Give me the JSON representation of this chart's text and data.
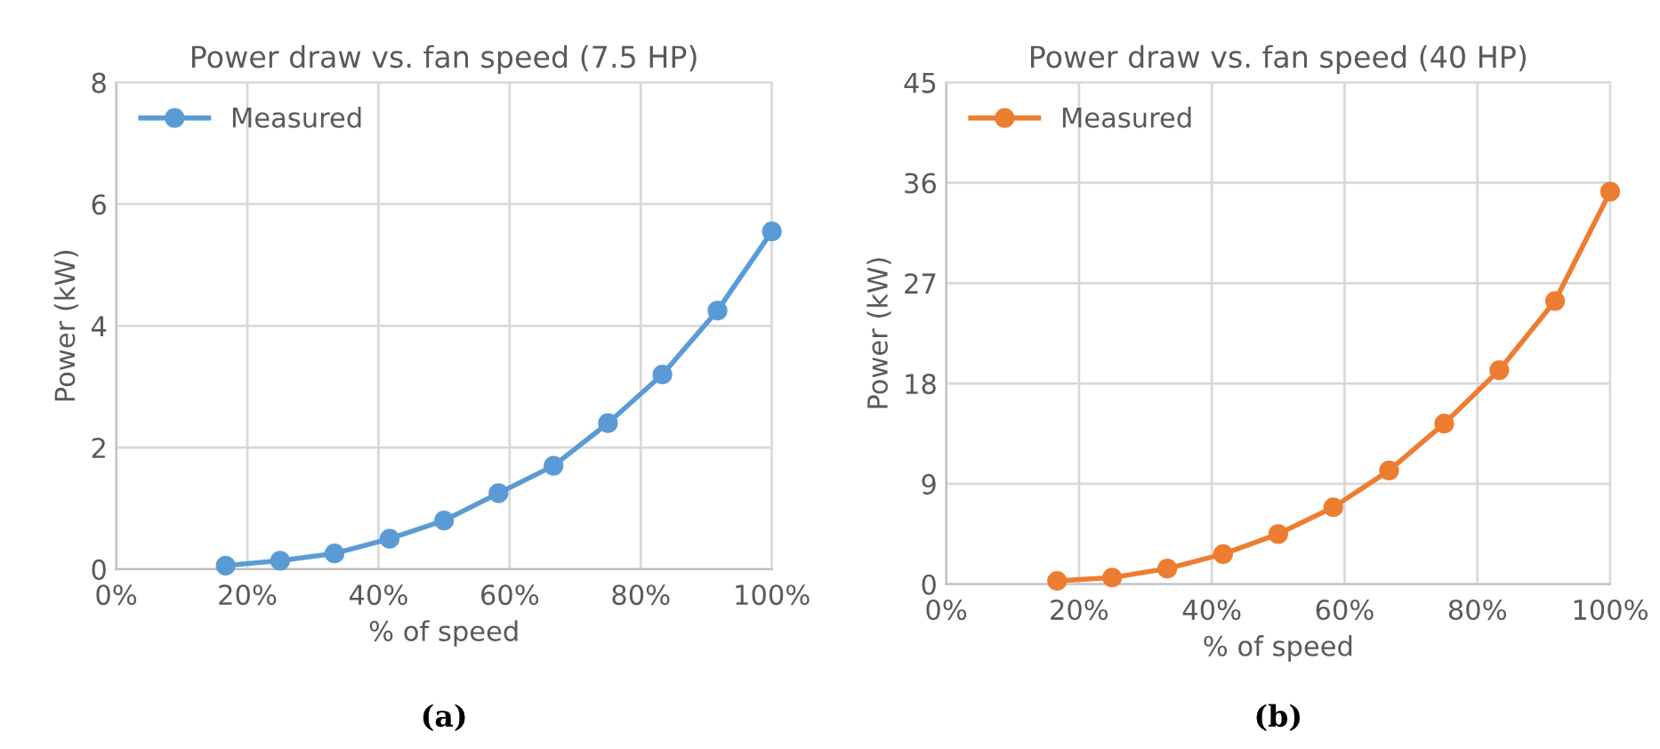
{
  "chart_data": [
    {
      "type": "line",
      "title": "Power draw vs. fan speed (7.5 HP)",
      "xlabel": "% of speed",
      "ylabel": "Power (kW)",
      "annotations": [
        "(a)"
      ],
      "x": [
        16.7,
        25,
        33.3,
        41.7,
        50,
        58.3,
        66.7,
        75,
        83.3,
        91.7,
        100
      ],
      "series": [
        {
          "name": "Measured",
          "color": "#5b9bd5",
          "values": [
            0.06,
            0.14,
            0.26,
            0.5,
            0.8,
            1.25,
            1.7,
            2.4,
            3.2,
            4.25,
            5.55
          ]
        }
      ],
      "xlim": [
        0,
        100
      ],
      "xticks": [
        {
          "value": 0,
          "label": "0%"
        },
        {
          "value": 20,
          "label": "20%"
        },
        {
          "value": 40,
          "label": "40%"
        },
        {
          "value": 60,
          "label": "60%"
        },
        {
          "value": 80,
          "label": "80%"
        },
        {
          "value": 100,
          "label": "100%"
        }
      ],
      "ylim": [
        0,
        8
      ],
      "yticks": [
        0,
        2,
        4,
        6,
        8
      ],
      "grid": true,
      "legend": "top left",
      "marker": "circle",
      "line_style": "solid"
    },
    {
      "type": "line",
      "title": "Power draw vs. fan speed (40 HP)",
      "xlabel": "% of speed",
      "ylabel": "Power (kW)",
      "annotations": [
        "(b)"
      ],
      "x": [
        16.7,
        25,
        33.3,
        41.7,
        50,
        58.3,
        66.7,
        75,
        83.3,
        91.7,
        100
      ],
      "series": [
        {
          "name": "Measured",
          "color": "#ed7d31",
          "values": [
            0.3,
            0.6,
            1.4,
            2.7,
            4.5,
            6.9,
            10.2,
            14.4,
            19.2,
            25.4,
            35.2
          ]
        }
      ],
      "xlim": [
        0,
        100
      ],
      "xticks": [
        {
          "value": 0,
          "label": "0%"
        },
        {
          "value": 20,
          "label": "20%"
        },
        {
          "value": 40,
          "label": "40%"
        },
        {
          "value": 60,
          "label": "60%"
        },
        {
          "value": 80,
          "label": "80%"
        },
        {
          "value": 100,
          "label": "100%"
        }
      ],
      "ylim": [
        0,
        45
      ],
      "yticks": [
        0,
        9,
        18,
        27,
        36,
        45
      ],
      "grid": true,
      "legend": "top left",
      "marker": "circle",
      "line_style": "solid"
    }
  ]
}
